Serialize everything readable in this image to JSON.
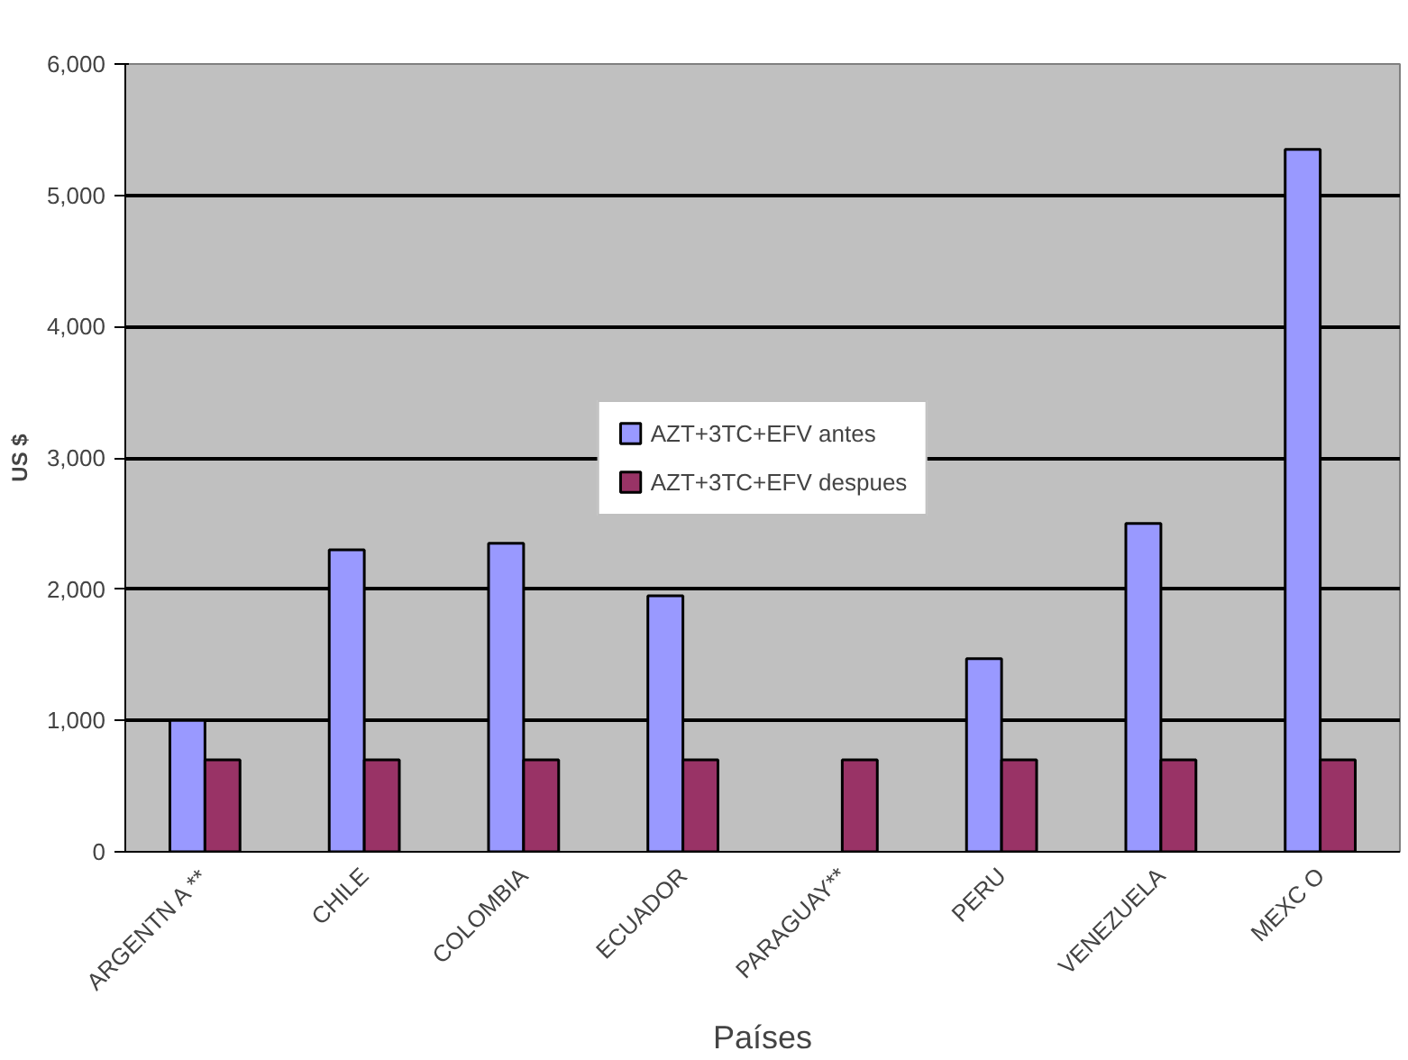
{
  "chart_data": {
    "type": "bar",
    "xlabel": "Países",
    "ylabel": "US $",
    "categories": [
      "ARGENTN A **",
      "CHILE",
      "COLOMBIA",
      "ECUADOR",
      "PARAGUAY**",
      "PERU",
      "VENEZUELA",
      "MEXC O"
    ],
    "series": [
      {
        "name": "AZT+3TC+EFV antes",
        "color": "#9999ff",
        "values": [
          1000,
          2300,
          2350,
          1950,
          null,
          1470,
          2500,
          5350
        ]
      },
      {
        "name": "AZT+3TC+EFV despues",
        "color": "#993366",
        "values": [
          700,
          700,
          700,
          700,
          700,
          700,
          700,
          700
        ]
      }
    ],
    "ylim": [
      0,
      6000
    ],
    "yticks": [
      {
        "value": 0,
        "label": "0"
      },
      {
        "value": 1000,
        "label": "1,000"
      },
      {
        "value": 2000,
        "label": "2,000"
      },
      {
        "value": 3000,
        "label": "3,000"
      },
      {
        "value": 4000,
        "label": "4,000"
      },
      {
        "value": 5000,
        "label": "5,000"
      },
      {
        "value": 6000,
        "label": "6,000"
      }
    ],
    "grid": "y",
    "legend": "center"
  }
}
